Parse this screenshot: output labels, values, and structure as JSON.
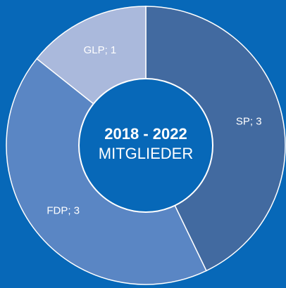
{
  "chart_data": {
    "type": "donut",
    "title": "2018 - 2022",
    "subtitle": "MITGLIEDER",
    "values": [
      3,
      3,
      1
    ],
    "value_labels": [
      "SP; 3",
      "FDP; 3",
      "GLP; 1"
    ],
    "colors": [
      "#426aa0",
      "#5a86c4",
      "#aab9dc"
    ]
  }
}
